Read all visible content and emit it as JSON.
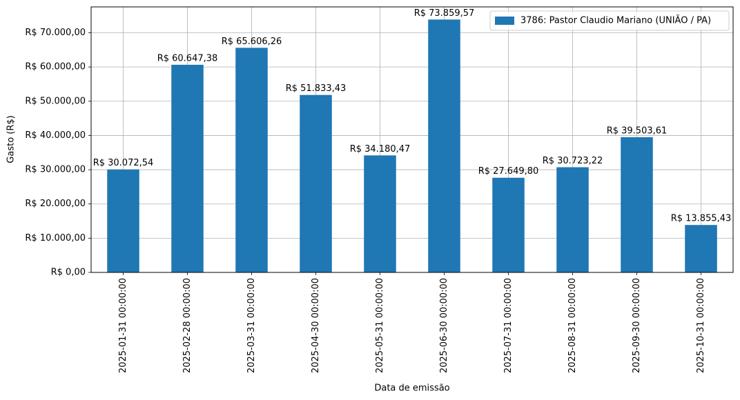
{
  "chart_data": {
    "type": "bar",
    "xlabel": "Data de emissão",
    "ylabel": "Gasto (R$)",
    "categories": [
      "2025-01-31 00:00:00",
      "2025-02-28 00:00:00",
      "2025-03-31 00:00:00",
      "2025-04-30 00:00:00",
      "2025-05-31 00:00:00",
      "2025-06-30 00:00:00",
      "2025-07-31 00:00:00",
      "2025-08-31 00:00:00",
      "2025-09-30 00:00:00",
      "2025-10-31 00:00:00"
    ],
    "series": [
      {
        "name": "3786: Pastor Claudio Mariano (UNIÃO / PA)",
        "color": "#1f77b4",
        "values": [
          30072.54,
          60647.38,
          65606.26,
          51833.43,
          34180.47,
          73859.57,
          27649.8,
          30723.22,
          39503.61,
          13855.43
        ],
        "value_labels": [
          "R$ 30.072,54",
          "R$ 60.647,38",
          "R$ 65.606,26",
          "R$ 51.833,43",
          "R$ 34.180,47",
          "R$ 73.859,57",
          "R$ 27.649,80",
          "R$ 30.723,22",
          "R$ 39.503,61",
          "R$ 13.855,43"
        ]
      }
    ],
    "ylim": [
      0,
      77552.55
    ],
    "yticks": [
      {
        "value": 0,
        "label": "R$ 0,00"
      },
      {
        "value": 10000,
        "label": "R$ 10.000,00"
      },
      {
        "value": 20000,
        "label": "R$ 20.000,00"
      },
      {
        "value": 30000,
        "label": "R$ 30.000,00"
      },
      {
        "value": 40000,
        "label": "R$ 40.000,00"
      },
      {
        "value": 50000,
        "label": "R$ 50.000,00"
      },
      {
        "value": 60000,
        "label": "R$ 60.000,00"
      },
      {
        "value": 70000,
        "label": "R$ 70.000,00"
      }
    ],
    "grid": true,
    "legend": "upper right"
  }
}
